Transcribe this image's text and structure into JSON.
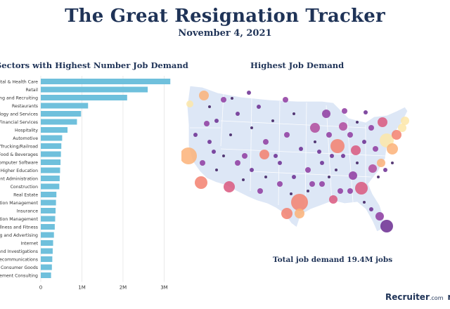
{
  "title": "The Great Resignation Tracker",
  "subtitle": "November 4, 2021",
  "total_text": "Total job demand 19.4M jobs",
  "footer": {
    "brand": "Recruiter",
    "brand_suffix": ".com",
    "extra": "re"
  },
  "colors": {
    "bar": "#6fc0dc",
    "title": "#1f3357",
    "map_land": "#dde7f6",
    "map_border": "#ffffff"
  },
  "chart_data": [
    {
      "type": "bar",
      "orientation": "horizontal",
      "title": "Sectors with Highest Number Job Demand",
      "categories": [
        "Hospital & Health Care",
        "Retail",
        "Staffing and Recruiting",
        "Restaurants",
        "Information Technology and Services",
        "Financial Services",
        "Hospitality",
        "Automotive",
        "Transportation/Trucking/Railroad",
        "Food & Beverages",
        "Computer Software",
        "Higher Education",
        "Government Administration",
        "Construction",
        "Real Estate",
        "Hospital Administration Management",
        "Insurance",
        "Education Management",
        "Health, Wellness and Fitness",
        "Marketing and Advertising",
        "Internet",
        "Security and Investigations",
        "Telecommunications",
        "Consumer Goods",
        "Management Consulting"
      ],
      "category_labels_visible": [
        "pital & Health Care",
        "Retail",
        "fing and Recruiting",
        "Restaurants",
        "logy and Services",
        "Financial Services",
        "Hospitality",
        "Automotive",
        "/Trucking/Railroad",
        "Food & Beverages",
        "Computer Software",
        "Higher Education",
        "ent Administration",
        "Construction",
        "Real Estate",
        "ation Management",
        "Insurance",
        "ation Management",
        "ellness and Fitness",
        "ng and Advertising",
        "Internet",
        "and Investigations",
        "ecommunications",
        "Consumer Goods",
        "gement Consulting"
      ],
      "values": [
        3150000,
        2600000,
        2100000,
        1150000,
        980000,
        880000,
        650000,
        520000,
        500000,
        490000,
        480000,
        470000,
        460000,
        450000,
        380000,
        370000,
        360000,
        350000,
        340000,
        320000,
        300000,
        290000,
        280000,
        270000,
        250000
      ],
      "x_ticks": [
        0,
        1000000,
        2000000,
        3000000
      ],
      "x_tick_labels": [
        "0",
        "1M",
        "2M",
        "3M"
      ],
      "xlim": [
        0,
        3300000
      ]
    },
    {
      "type": "bubble-map",
      "title": "Highest Job Demand",
      "region": "United States",
      "note": "Circles sized and colored by job demand per metro area"
    }
  ]
}
